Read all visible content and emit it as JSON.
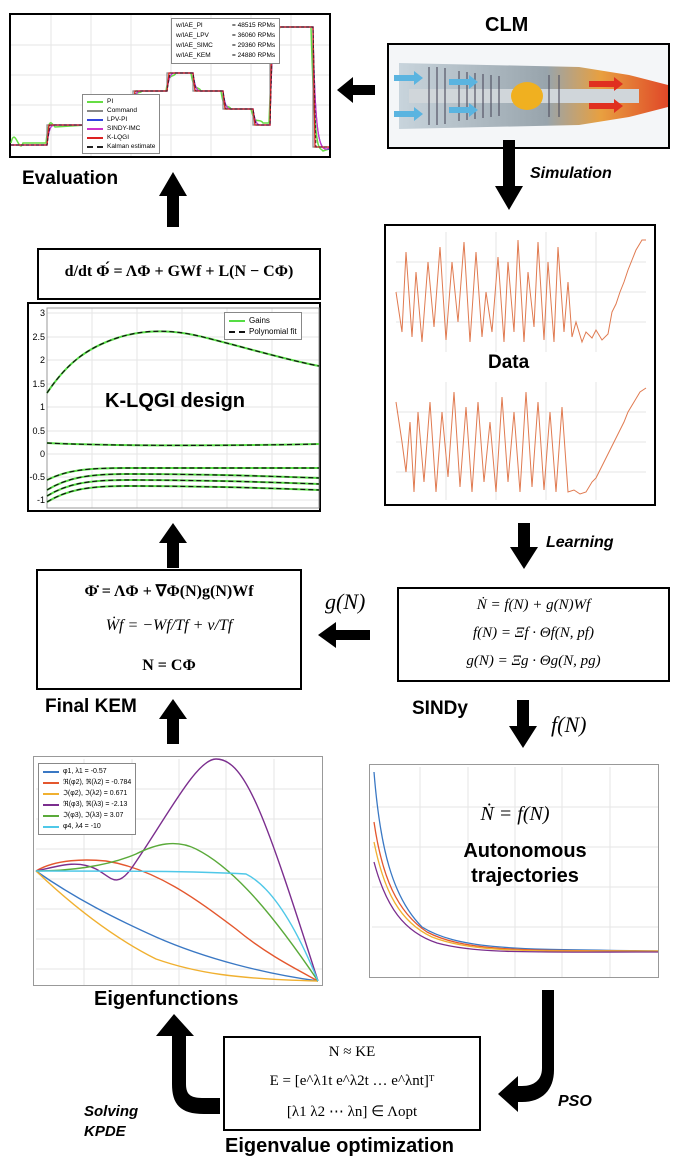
{
  "labels": {
    "clm": "CLM",
    "evaluation": "Evaluation",
    "simulation": "Simulation",
    "data": "Data",
    "learning": "Learning",
    "sindy": "SINDy",
    "final_kem": "Final KEM",
    "klqgi_design": "K-LQGI design",
    "eigenfunctions": "Eigenfunctions",
    "autonomous_trajectories": "Autonomous trajectories",
    "eigenvalue_optimization": "Eigenvalue optimization",
    "pso": "PSO",
    "solving_kpde": "Solving KPDE",
    "g_of_n": "g(N)",
    "f_of_n": "f(N)"
  },
  "equations": {
    "observer": "d/dt Φ́ = ΛΦ + GWf + L(N − CΦ)",
    "kem_1": "Φ̇ = ΛΦ + ∇Φ(N)g(N)Wf",
    "kem_2": "Ẇf = −Wf/Tf + v/Tf",
    "kem_3": "N = CΦ",
    "sindy_1": "Ṅ = f(N) + g(N)Wf",
    "sindy_2": "f(N) = Ξf · Θf(N, pf)",
    "sindy_3": "g(N) = Ξg · Θg(N, pg)",
    "autonomous": "Ṅ = f(N)",
    "opt_1": "N ≈ KE",
    "opt_2": "E = [e^λ1t  e^λ2t  …  e^λnt]ᵀ",
    "opt_3": "[λ1  λ2  ⋯  λn] ∈ Λopt"
  },
  "evaluation_plot": {
    "legend": [
      "PI",
      "Command",
      "LPV-PI",
      "SINDY-IMC",
      "K-LQGI",
      "Kalman estimate"
    ],
    "iae": [
      {
        "label": "w/IAE_PI",
        "value": "= 48515 RPMs"
      },
      {
        "label": "w/IAE_LPV",
        "value": "= 36060 RPMs"
      },
      {
        "label": "w/IAE_SIMC",
        "value": "= 29360 RPMs"
      },
      {
        "label": "w/IAE_KEM",
        "value": "= 24880 RPMs"
      }
    ]
  },
  "gains_plot": {
    "legend": [
      "Gains",
      "Polynomial fit"
    ],
    "yticks": [
      "3",
      "2.5",
      "2",
      "1.5",
      "1",
      "0.5",
      "0",
      "-0.5",
      "-1"
    ]
  },
  "eigen_plot": {
    "legend": [
      "φ1, λ1 = -0.57",
      "ℜ(φ2), ℜ(λ2) = -0.784",
      "ℑ(φ2), ℑ(λ2) = 0.671",
      "ℜ(φ3), ℜ(λ3) = -2.13",
      "ℑ(φ3), ℑ(λ3) = 3.07",
      "φ4, λ4 = -10"
    ]
  },
  "colors": {
    "pi": "#66dd44",
    "command": "#888888",
    "lpv": "#3344dd",
    "sindy": "#cc33cc",
    "klqgi": "#dd2222",
    "kalman": "#222222",
    "data_line": "#e07a50",
    "eig1": "#3a78c4",
    "eig2": "#e4572e",
    "eig3": "#f0b030",
    "eig4": "#7b2e8e",
    "eig5": "#5aaa3a",
    "eig6": "#4fc8e8",
    "engine_blue": "#7fc8e8",
    "engine_red": "#e04828"
  }
}
